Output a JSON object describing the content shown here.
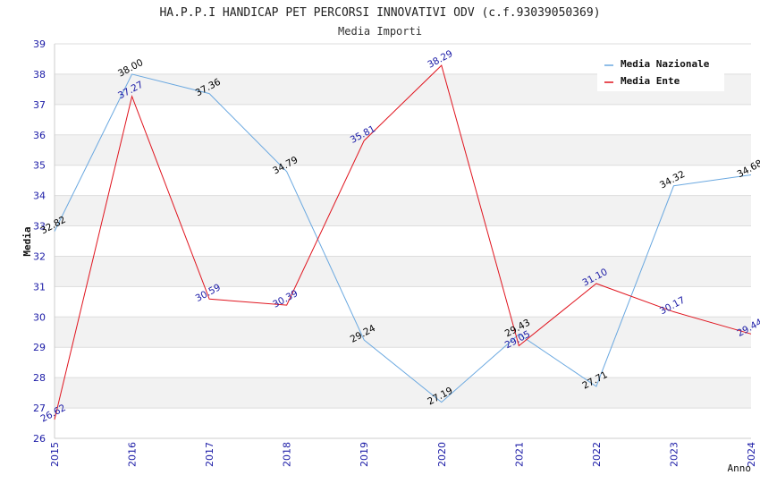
{
  "chart_data": {
    "type": "line",
    "title": "HA.P.P.I HANDICAP PET PERCORSI INNOVATIVI ODV (c.f.93039050369)",
    "subtitle": "Media Importi",
    "xlabel": "Anno",
    "ylabel": "Media",
    "x": [
      "2015",
      "2016",
      "2017",
      "2018",
      "2019",
      "2020",
      "2021",
      "2022",
      "2023",
      "2024"
    ],
    "ylim": [
      26,
      39
    ],
    "yticks": [
      26,
      27,
      28,
      29,
      30,
      31,
      32,
      33,
      34,
      35,
      36,
      37,
      38,
      39
    ],
    "grid": true,
    "legend_position": "top-right",
    "series": [
      {
        "name": "Media Nazionale",
        "color": "#6aa8e0",
        "label_color": "#000000",
        "values": [
          32.82,
          38.0,
          37.36,
          34.79,
          29.24,
          27.19,
          29.43,
          27.71,
          34.32,
          34.68
        ],
        "labels": [
          "32.82",
          "38.00",
          "37.36",
          "34.79",
          "29.24",
          "27.19",
          "29.43",
          "27.71",
          "34.32",
          "34.68"
        ]
      },
      {
        "name": "Media Ente",
        "color": "#e0141e",
        "label_color": "#1a1aa6",
        "values": [
          26.62,
          37.27,
          30.59,
          30.39,
          35.81,
          38.29,
          29.05,
          31.1,
          30.17,
          29.44
        ],
        "labels": [
          "26.62",
          "37.27",
          "30.59",
          "30.39",
          "35.81",
          "38.29",
          "29.05",
          "31.10",
          "30.17",
          "29.44"
        ]
      }
    ]
  }
}
